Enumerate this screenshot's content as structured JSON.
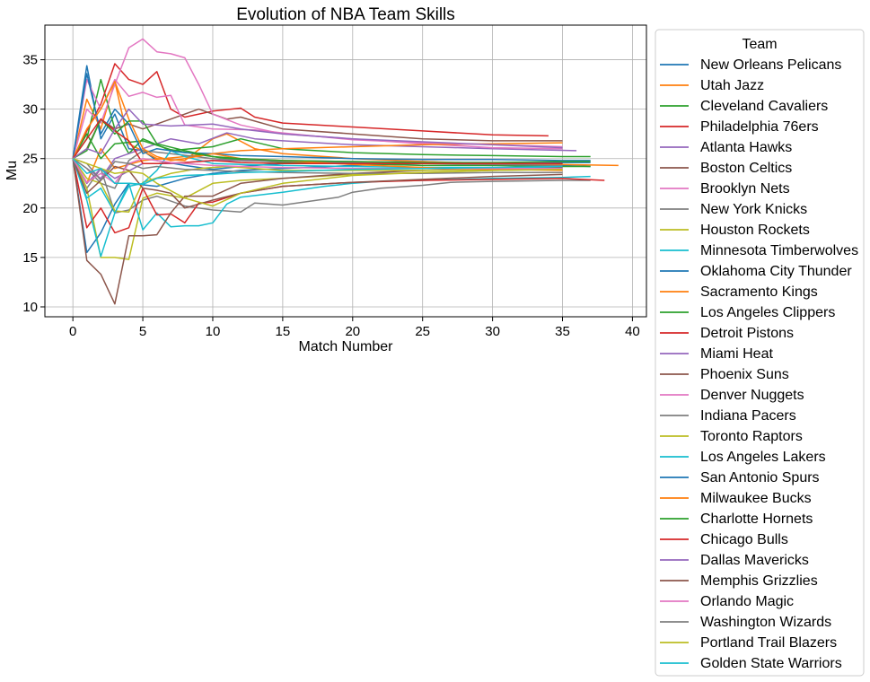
{
  "chart_data": {
    "type": "line",
    "title": "Evolution of NBA Team Skills",
    "xlabel": "Match Number",
    "ylabel": "Mu",
    "xlim": [
      -2,
      41
    ],
    "ylim": [
      9,
      38.5
    ],
    "xticks": [
      0,
      5,
      10,
      15,
      20,
      25,
      30,
      35,
      40
    ],
    "yticks": [
      10,
      15,
      20,
      25,
      30,
      35
    ],
    "grid": true,
    "legend_title": "Team",
    "legend_placement": "outside right",
    "series": [
      {
        "name": "New Orleans Pelicans",
        "color": "#1f77b4",
        "x": [
          0,
          1,
          2,
          3,
          4,
          5,
          6,
          8,
          10,
          12,
          15,
          20,
          25,
          30,
          35,
          37
        ],
        "y": [
          25,
          34.4,
          27,
          29.5,
          26,
          25.8,
          24.8,
          24.3,
          23.9,
          24.2,
          24.5,
          24.6,
          24.7,
          24.4,
          24.3,
          24.2
        ]
      },
      {
        "name": "Utah Jazz",
        "color": "#ff7f0e",
        "x": [
          0,
          1,
          2,
          3,
          4,
          6,
          8,
          10,
          11,
          13,
          15,
          20,
          25,
          30,
          35,
          39
        ],
        "y": [
          25,
          31,
          28,
          32.8,
          26.5,
          25,
          24.8,
          27,
          27.5,
          26,
          25.5,
          25,
          24.7,
          24.5,
          24.4,
          24.3
        ]
      },
      {
        "name": "Cleveland Cavaliers",
        "color": "#2ca02c",
        "x": [
          0,
          1,
          2,
          3,
          4,
          5,
          7,
          10,
          12,
          15,
          20,
          25,
          30,
          35,
          37
        ],
        "y": [
          25,
          27,
          33,
          28,
          25.5,
          27,
          25.8,
          26.2,
          27,
          26,
          25.6,
          25.4,
          25.3,
          25.2,
          25.2
        ]
      },
      {
        "name": "Philadelphia 76ers",
        "color": "#d62728",
        "x": [
          0,
          1,
          2,
          3,
          4,
          5,
          6,
          7,
          8,
          10,
          12,
          13,
          15,
          20,
          25,
          30,
          34
        ],
        "y": [
          25,
          27.8,
          30.5,
          34.6,
          33,
          32.5,
          33.8,
          30,
          29.2,
          29.8,
          30.1,
          29.2,
          28.6,
          28.2,
          27.8,
          27.4,
          27.3
        ]
      },
      {
        "name": "Atlanta Hawks",
        "color": "#9467bd",
        "x": [
          0,
          1,
          2,
          3,
          5,
          7,
          9,
          11,
          13,
          15,
          20,
          25,
          30,
          36
        ],
        "y": [
          25,
          24,
          23,
          25,
          26,
          27,
          26.5,
          27.6,
          27,
          26.8,
          26.4,
          26.2,
          26,
          25.8
        ]
      },
      {
        "name": "Boston Celtics",
        "color": "#8c564b",
        "x": [
          0,
          1,
          2,
          3,
          4,
          5,
          7,
          9,
          11,
          12,
          15,
          20,
          25,
          30,
          35
        ],
        "y": [
          25,
          26,
          29,
          28,
          28.5,
          28,
          29,
          30,
          29,
          29.2,
          28,
          27.5,
          27,
          26.8,
          26.8
        ]
      },
      {
        "name": "Brooklyn Nets",
        "color": "#e377c2",
        "x": [
          0,
          1,
          2,
          3,
          4,
          5,
          6,
          7,
          8,
          9,
          10,
          12,
          15,
          20,
          25,
          30,
          35
        ],
        "y": [
          25,
          30,
          28.6,
          32.5,
          36.2,
          37.1,
          35.8,
          35.6,
          35.2,
          32.5,
          29.5,
          28.4,
          27.5,
          27,
          26.5,
          26.1,
          26
        ]
      },
      {
        "name": "New York Knicks",
        "color": "#7f7f7f",
        "x": [
          0,
          1,
          2,
          3,
          4,
          5,
          6,
          8,
          10,
          12,
          13,
          15,
          17,
          19,
          20,
          22,
          25,
          27,
          30,
          35,
          37
        ],
        "y": [
          25,
          22,
          24,
          19.5,
          19.8,
          20.8,
          21.2,
          20.2,
          19.8,
          19.6,
          20.5,
          20.3,
          20.7,
          21.1,
          21.6,
          22,
          22.3,
          22.6,
          22.7,
          22.8,
          22.8
        ]
      },
      {
        "name": "Houston Rockets",
        "color": "#bcbd22",
        "x": [
          0,
          1,
          2,
          3,
          4,
          5,
          6,
          8,
          10,
          12,
          15,
          20,
          25,
          30,
          35
        ],
        "y": [
          25,
          22,
          15,
          15,
          14.8,
          21,
          21.5,
          21,
          22.5,
          22.8,
          23,
          23.4,
          23.6,
          23.8,
          23.9
        ]
      },
      {
        "name": "Minnesota Timberwolves",
        "color": "#17becf",
        "x": [
          0,
          1,
          2,
          3,
          4,
          5,
          6,
          7,
          8,
          9,
          10,
          11,
          12,
          15,
          18,
          20,
          22,
          25,
          30,
          35,
          37
        ],
        "y": [
          25,
          21,
          22,
          19.5,
          22.5,
          17.8,
          19.5,
          18.1,
          18.2,
          18.2,
          18.5,
          20.4,
          21.1,
          21.6,
          22.2,
          22.5,
          22.7,
          22.8,
          23,
          23.1,
          23.2
        ]
      },
      {
        "name": "Oklahoma City Thunder",
        "color": "#1f77b4",
        "x": [
          0,
          1,
          2,
          3,
          4,
          6,
          8,
          10,
          12,
          15,
          20,
          25,
          30,
          35,
          37
        ],
        "y": [
          25,
          15.5,
          17.5,
          20.4,
          22.5,
          22.2,
          23,
          23.5,
          23.8,
          24,
          24.3,
          24.5,
          24.5,
          24.6,
          24.6
        ]
      },
      {
        "name": "Sacramento Kings",
        "color": "#ff7f0e",
        "x": [
          0,
          1,
          2,
          3,
          5,
          8,
          10,
          12,
          15,
          20,
          25,
          30,
          35
        ],
        "y": [
          25,
          22.5,
          26,
          24,
          24.8,
          25.2,
          25.5,
          25.8,
          26,
          26.2,
          26.4,
          26.5,
          26.6
        ]
      },
      {
        "name": "Los Angeles Clippers",
        "color": "#2ca02c",
        "x": [
          0,
          1,
          2,
          3,
          5,
          7,
          9,
          11,
          13,
          15,
          20,
          25,
          30,
          35,
          37
        ],
        "y": [
          25,
          27.5,
          25,
          26.5,
          26.8,
          25.9,
          25.4,
          25,
          24.8,
          24.6,
          24.5,
          24.3,
          24.3,
          24.2,
          24.2
        ]
      },
      {
        "name": "Detroit Pistons",
        "color": "#d62728",
        "x": [
          0,
          1,
          2,
          3,
          4,
          5,
          6,
          7,
          8,
          9,
          10,
          12,
          15,
          20,
          25,
          30,
          35,
          38
        ],
        "y": [
          25,
          18,
          20,
          17.5,
          18,
          22,
          19.3,
          19.4,
          18.5,
          20.5,
          20.6,
          21.5,
          22.2,
          22.6,
          22.8,
          22.9,
          23,
          22.8
        ]
      },
      {
        "name": "Miami Heat",
        "color": "#9467bd",
        "x": [
          0,
          1,
          2,
          3,
          5,
          7,
          10,
          12,
          15,
          20,
          25,
          30,
          35
        ],
        "y": [
          25,
          22.5,
          24,
          23,
          24.5,
          24.5,
          24.8,
          24.8,
          24.8,
          24.7,
          24.6,
          24.6,
          24.5
        ]
      },
      {
        "name": "Phoenix Suns",
        "color": "#8c564b",
        "x": [
          0,
          1,
          2,
          3,
          4,
          5,
          6,
          7,
          8,
          10,
          12,
          15,
          20,
          25,
          30,
          35
        ],
        "y": [
          25,
          14.7,
          13.3,
          10.3,
          17.2,
          17.2,
          17.3,
          19.5,
          21.2,
          21.2,
          22.5,
          23,
          23.5,
          23.8,
          24,
          24.1
        ]
      },
      {
        "name": "Denver Nuggets",
        "color": "#e377c2",
        "x": [
          0,
          1,
          2,
          3,
          4,
          5,
          6,
          7,
          8,
          10,
          13,
          15,
          20,
          25,
          30,
          35
        ],
        "y": [
          25,
          33,
          30,
          33,
          31.3,
          31.7,
          31.2,
          31.4,
          28.4,
          28,
          27.9,
          27.6,
          26.9,
          26.6,
          26.4,
          26.2
        ]
      },
      {
        "name": "Indiana Pacers",
        "color": "#7f7f7f",
        "x": [
          0,
          1,
          2,
          3,
          4,
          5,
          7,
          10,
          12,
          15,
          20,
          25,
          30,
          35
        ],
        "y": [
          25,
          24,
          22.5,
          22,
          24.8,
          25.8,
          25.5,
          25,
          24.8,
          24.7,
          24.6,
          24.5,
          24.4,
          24.3
        ]
      },
      {
        "name": "Toronto Raptors",
        "color": "#bcbd22",
        "x": [
          0,
          1,
          2,
          3,
          4,
          5,
          7,
          9,
          11,
          13,
          15,
          20,
          25,
          30,
          35
        ],
        "y": [
          25,
          23,
          22.5,
          19.7,
          19.6,
          22.6,
          23.5,
          24,
          24.2,
          24,
          23.8,
          23.8,
          23.8,
          23.9,
          23.9
        ]
      },
      {
        "name": "Los Angeles Lakers",
        "color": "#17becf",
        "x": [
          0,
          1,
          2,
          3,
          4,
          5,
          6,
          7,
          8,
          10,
          12,
          15,
          20,
          25,
          30,
          35
        ],
        "y": [
          25,
          20.8,
          15.1,
          19.5,
          22.2,
          22.5,
          23.8,
          25.8,
          25.2,
          24.5,
          24.4,
          24.3,
          24.2,
          24.1,
          24.1,
          24
        ]
      },
      {
        "name": "San Antonio Spurs",
        "color": "#1f77b4",
        "x": [
          0,
          1,
          2,
          3,
          4,
          5,
          6,
          8,
          10,
          12,
          15,
          20,
          25,
          30,
          35,
          37
        ],
        "y": [
          25,
          33.6,
          27.5,
          30,
          28.5,
          25.5,
          26,
          25.6,
          25.5,
          25.3,
          25.2,
          25,
          24.9,
          24.9,
          24.8,
          24.8
        ]
      },
      {
        "name": "Milwaukee Bucks",
        "color": "#ff7f0e",
        "x": [
          0,
          1,
          2,
          3,
          4,
          5,
          6,
          7,
          8,
          10,
          12,
          15,
          20,
          25,
          30,
          35
        ],
        "y": [
          25,
          28,
          30,
          32.8,
          29,
          26,
          25.2,
          24.8,
          25,
          25.5,
          25,
          24.8,
          24.4,
          24.1,
          23.9,
          23.8
        ]
      },
      {
        "name": "Charlotte Hornets",
        "color": "#2ca02c",
        "x": [
          0,
          1,
          2,
          3,
          4,
          5,
          6,
          8,
          10,
          12,
          15,
          20,
          25,
          30,
          35,
          37
        ],
        "y": [
          25,
          25.8,
          29,
          27.5,
          28.8,
          28.8,
          26.5,
          25.8,
          25.2,
          25,
          24.8,
          24.7,
          24.6,
          24.6,
          24.7,
          24.7
        ]
      },
      {
        "name": "Chicago Bulls",
        "color": "#d62728",
        "x": [
          0,
          1,
          2,
          3,
          4,
          5,
          6,
          8,
          10,
          12,
          15,
          20,
          25,
          30,
          35
        ],
        "y": [
          25,
          27,
          29,
          27.8,
          26.8,
          24.5,
          24.5,
          24.6,
          24.8,
          24.6,
          24.5,
          24.5,
          24.5,
          24.5,
          24.5
        ]
      },
      {
        "name": "Dallas Mavericks",
        "color": "#9467bd",
        "x": [
          0,
          1,
          2,
          3,
          4,
          5,
          7,
          10,
          12,
          15,
          20,
          25,
          30,
          35
        ],
        "y": [
          25,
          26,
          25.5,
          28,
          30,
          28.5,
          28.3,
          28.5,
          28,
          27.5,
          27,
          26.7,
          26.4,
          26.1
        ]
      },
      {
        "name": "Memphis Grizzlies",
        "color": "#8c564b",
        "x": [
          0,
          1,
          2,
          3,
          4,
          5,
          6,
          7,
          8,
          10,
          12,
          15,
          20,
          25,
          30,
          35
        ],
        "y": [
          25,
          21.5,
          22.8,
          24.2,
          23.8,
          22,
          21.8,
          21.5,
          20,
          20.8,
          21.5,
          22.2,
          22.6,
          22.9,
          23.2,
          23.4
        ]
      },
      {
        "name": "Orlando Magic",
        "color": "#e377c2",
        "x": [
          0,
          1,
          2,
          3,
          4,
          5,
          7,
          10,
          12,
          15,
          20,
          25,
          30,
          35
        ],
        "y": [
          25,
          22.6,
          23.5,
          22.5,
          24.5,
          25,
          24.6,
          24.3,
          24.2,
          24.1,
          24,
          24,
          24,
          24
        ]
      },
      {
        "name": "Washington Wizards",
        "color": "#7f7f7f",
        "x": [
          0,
          1,
          2,
          3,
          4,
          5,
          6,
          8,
          10,
          12,
          15,
          20,
          25,
          30,
          35
        ],
        "y": [
          25,
          24.5,
          22.8,
          24.7,
          24.5,
          24,
          24.2,
          23.9,
          23.8,
          23.7,
          23.6,
          23.5,
          23.5,
          23.6,
          23.6
        ]
      },
      {
        "name": "Portland Trail Blazers",
        "color": "#bcbd22",
        "x": [
          0,
          1,
          2,
          3,
          4,
          5,
          6,
          8,
          10,
          12,
          15,
          20,
          25,
          30,
          35
        ],
        "y": [
          25,
          24.5,
          24,
          23.5,
          23.7,
          23.5,
          22.5,
          21,
          20.2,
          21.5,
          22.5,
          23.3,
          23.6,
          23.8,
          23.9
        ]
      },
      {
        "name": "Golden State Warriors",
        "color": "#17becf",
        "x": [
          0,
          1,
          2,
          3,
          4,
          5,
          6,
          8,
          10,
          12,
          15,
          20,
          25,
          30,
          35
        ],
        "y": [
          25,
          23.5,
          24,
          22.5,
          22.5,
          22.4,
          23,
          23.3,
          23.4,
          23.6,
          23.7,
          23.9,
          24,
          24.1,
          24.2
        ]
      }
    ]
  }
}
